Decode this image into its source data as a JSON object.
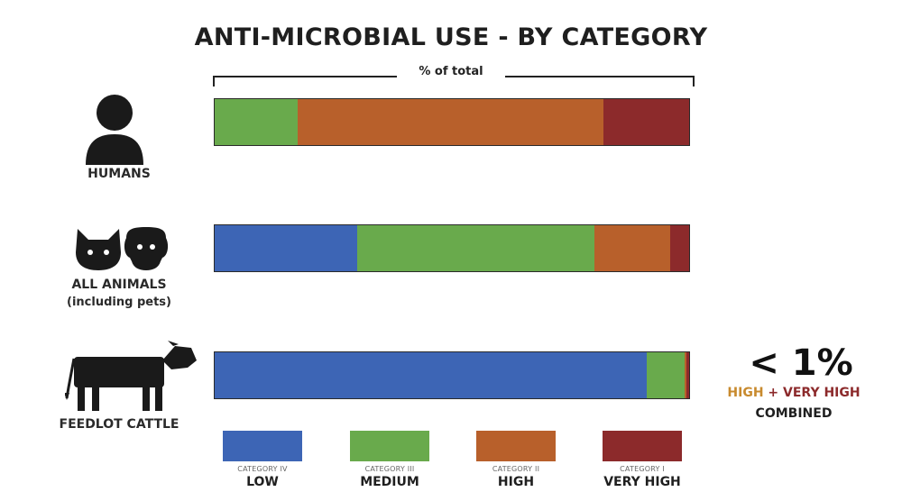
{
  "chart_data": {
    "type": "bar",
    "stacked": true,
    "orientation": "horizontal",
    "title": "ANTI-MICROBIAL USE - BY CATEGORY",
    "xlabel": "% of total",
    "xlim": [
      0,
      100
    ],
    "categories": [
      "HUMANS",
      "ALL ANIMALS",
      "FEEDLOT CATTLE"
    ],
    "category_sublabels": [
      "",
      "(including pets)",
      ""
    ],
    "series": [
      {
        "name": "LOW",
        "category_label": "CATEGORY IV",
        "color": "#3d65b5",
        "values": [
          0,
          30,
          91
        ]
      },
      {
        "name": "MEDIUM",
        "category_label": "CATEGORY III",
        "color": "#69aa4c",
        "values": [
          17.5,
          50,
          8
        ]
      },
      {
        "name": "HIGH",
        "category_label": "CATEGORY II",
        "color": "#b8602b",
        "values": [
          64.5,
          16,
          0.5
        ]
      },
      {
        "name": "VERY HIGH",
        "category_label": "CATEGORY I",
        "color": "#8c2a2b",
        "values": [
          18,
          4,
          0.5
        ]
      }
    ],
    "legend_position": "bottom"
  },
  "callout": {
    "value": "< 1%",
    "high_text": "HIGH",
    "plus_text": "+",
    "very_high_text": "VERY HIGH",
    "combined_text": "COMBINED",
    "high_color": "#c88a2e",
    "very_high_color": "#8c2a2b"
  },
  "icons": {
    "humans": "person-icon",
    "all_animals": "cat-dog-icon",
    "feedlot_cattle": "cow-icon"
  }
}
